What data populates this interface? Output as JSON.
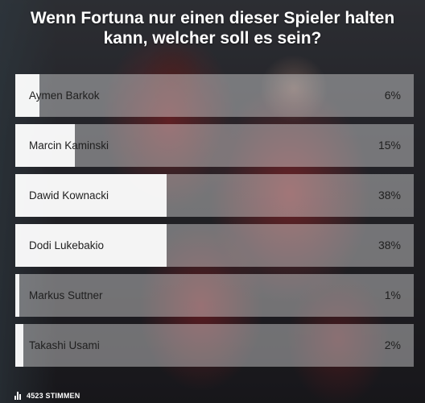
{
  "poll": {
    "question": "Wenn Fortuna nur einen dieser Spieler halten kann, welcher soll es sein?",
    "options": [
      {
        "name": "Aymen Barkok",
        "percent_label": "6%",
        "percent": 6
      },
      {
        "name": "Marcin Kaminski",
        "percent_label": "15%",
        "percent": 15
      },
      {
        "name": "Dawid Kownacki",
        "percent_label": "38%",
        "percent": 38
      },
      {
        "name": "Dodi Lukebakio",
        "percent_label": "38%",
        "percent": 38
      },
      {
        "name": "Markus Suttner",
        "percent_label": "1%",
        "percent": 1
      },
      {
        "name": "Takashi Usami",
        "percent_label": "2%",
        "percent": 2
      }
    ],
    "leading_option_index": 2,
    "votes_label": "4523 STIMMEN",
    "votes_icon": "bar-chart-icon"
  }
}
